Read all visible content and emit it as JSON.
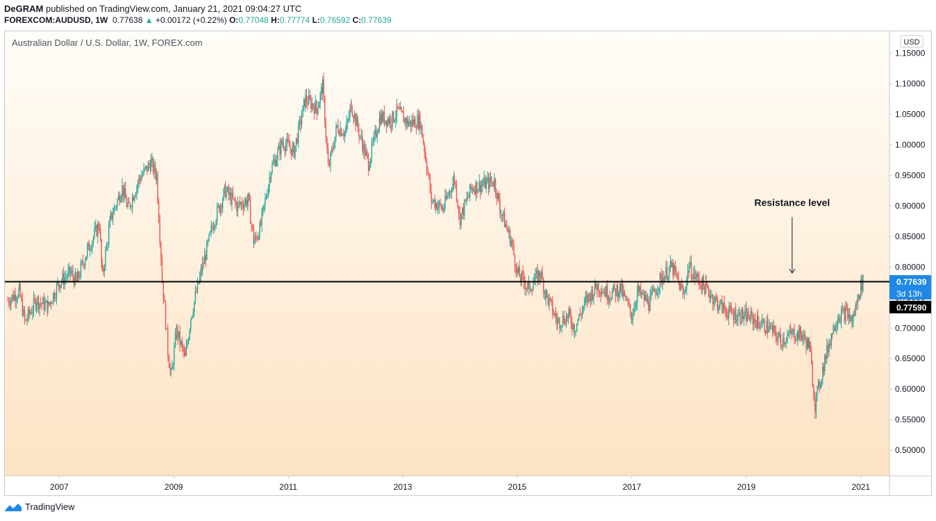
{
  "header": {
    "author": "DeGRAM",
    "published_text": "published on TradingView.com, January 21, 2021 09:04:27 UTC",
    "symbol": "FOREXCOM:AUDUSD, 1W",
    "last": "0.77638",
    "change": "+0.00172 (+0.22%)",
    "o_label": "O:",
    "o_value": "0.77048",
    "h_label": "H:",
    "h_value": "0.77774",
    "l_label": "L:",
    "l_value": "0.76592",
    "c_label": "C:",
    "c_value": "0.77639"
  },
  "footer": {
    "brand": "TradingView"
  },
  "colors": {
    "up": "#26a69a",
    "down": "#ef5350",
    "bg_top": "#fffdf8",
    "bg_bottom": "#fde3c4",
    "price_label": "#1e88e5",
    "line": "#000000"
  },
  "chart_data": {
    "type": "candlestick",
    "title": "Australian Dollar / U.S. Dollar, 1W, FOREX.com",
    "currency": "USD",
    "x_ticks": [
      "2007",
      "2009",
      "2011",
      "2013",
      "2015",
      "2017",
      "2019",
      "2021"
    ],
    "y_ticks": [
      1.15,
      1.1,
      1.05,
      1.0,
      0.95,
      0.9,
      0.85,
      0.8,
      0.75,
      0.7,
      0.65,
      0.6,
      0.55,
      0.5
    ],
    "y_tick_labels": [
      "1.15000",
      "1.10000",
      "1.05000",
      "1.00000",
      "0.95000",
      "0.90000",
      "0.85000",
      "0.80000",
      "0.75000",
      "0.70000",
      "0.65000",
      "0.60000",
      "0.55000",
      "0.50000"
    ],
    "y_range": [
      0.458,
      1.186
    ],
    "x_range": [
      2006.05,
      2021.5
    ],
    "series": [
      {
        "points": [
          [
            2006.1,
            0.745
          ],
          [
            2006.3,
            0.76
          ],
          [
            2006.4,
            0.71
          ],
          [
            2006.6,
            0.745
          ],
          [
            2006.8,
            0.735
          ],
          [
            2007.0,
            0.775
          ],
          [
            2007.2,
            0.79
          ],
          [
            2007.3,
            0.775
          ],
          [
            2007.5,
            0.83
          ],
          [
            2007.7,
            0.87
          ],
          [
            2007.75,
            0.785
          ],
          [
            2007.9,
            0.88
          ],
          [
            2008.1,
            0.93
          ],
          [
            2008.2,
            0.895
          ],
          [
            2008.4,
            0.945
          ],
          [
            2008.6,
            0.97
          ],
          [
            2008.7,
            0.95
          ],
          [
            2008.8,
            0.78
          ],
          [
            2008.9,
            0.66
          ],
          [
            2008.95,
            0.62
          ],
          [
            2009.05,
            0.695
          ],
          [
            2009.2,
            0.65
          ],
          [
            2009.3,
            0.72
          ],
          [
            2009.5,
            0.8
          ],
          [
            2009.7,
            0.875
          ],
          [
            2009.9,
            0.925
          ],
          [
            2010.1,
            0.9
          ],
          [
            2010.3,
            0.91
          ],
          [
            2010.4,
            0.84
          ],
          [
            2010.5,
            0.86
          ],
          [
            2010.7,
            0.96
          ],
          [
            2010.9,
            1.005
          ],
          [
            2011.1,
            0.99
          ],
          [
            2011.3,
            1.075
          ],
          [
            2011.5,
            1.06
          ],
          [
            2011.6,
            1.095
          ],
          [
            2011.7,
            0.96
          ],
          [
            2011.85,
            1.03
          ],
          [
            2012.0,
            1.02
          ],
          [
            2012.1,
            1.065
          ],
          [
            2012.3,
            1.0
          ],
          [
            2012.4,
            0.97
          ],
          [
            2012.6,
            1.045
          ],
          [
            2012.8,
            1.04
          ],
          [
            2012.9,
            1.055
          ],
          [
            2013.1,
            1.035
          ],
          [
            2013.3,
            1.04
          ],
          [
            2013.4,
            0.98
          ],
          [
            2013.5,
            0.91
          ],
          [
            2013.7,
            0.895
          ],
          [
            2013.9,
            0.945
          ],
          [
            2014.0,
            0.88
          ],
          [
            2014.2,
            0.93
          ],
          [
            2014.4,
            0.935
          ],
          [
            2014.6,
            0.94
          ],
          [
            2014.7,
            0.895
          ],
          [
            2014.9,
            0.84
          ],
          [
            2015.0,
            0.79
          ],
          [
            2015.2,
            0.765
          ],
          [
            2015.4,
            0.79
          ],
          [
            2015.5,
            0.755
          ],
          [
            2015.7,
            0.71
          ],
          [
            2015.9,
            0.72
          ],
          [
            2016.0,
            0.7
          ],
          [
            2016.2,
            0.745
          ],
          [
            2016.4,
            0.77
          ],
          [
            2016.6,
            0.755
          ],
          [
            2016.8,
            0.765
          ],
          [
            2017.0,
            0.72
          ],
          [
            2017.1,
            0.76
          ],
          [
            2017.3,
            0.74
          ],
          [
            2017.5,
            0.78
          ],
          [
            2017.7,
            0.8
          ],
          [
            2017.9,
            0.755
          ],
          [
            2018.0,
            0.8
          ],
          [
            2018.1,
            0.785
          ],
          [
            2018.3,
            0.765
          ],
          [
            2018.5,
            0.74
          ],
          [
            2018.7,
            0.725
          ],
          [
            2018.9,
            0.72
          ],
          [
            2019.0,
            0.72
          ],
          [
            2019.2,
            0.71
          ],
          [
            2019.4,
            0.7
          ],
          [
            2019.6,
            0.68
          ],
          [
            2019.8,
            0.69
          ],
          [
            2019.95,
            0.69
          ],
          [
            2020.1,
            0.67
          ],
          [
            2020.2,
            0.575
          ],
          [
            2020.35,
            0.64
          ],
          [
            2020.5,
            0.695
          ],
          [
            2020.6,
            0.72
          ],
          [
            2020.75,
            0.725
          ],
          [
            2020.85,
            0.71
          ],
          [
            2021.0,
            0.77
          ],
          [
            2021.05,
            0.7764
          ]
        ]
      }
    ],
    "annotations": [
      {
        "text": "Resistance level",
        "x": 2019.8,
        "y": 0.9
      },
      {
        "kind": "horizontal_line",
        "y": 0.7759
      }
    ],
    "price_labels": {
      "last": "0.77639",
      "countdown": "3d 13h",
      "line": "0.77590"
    },
    "grid": false
  }
}
